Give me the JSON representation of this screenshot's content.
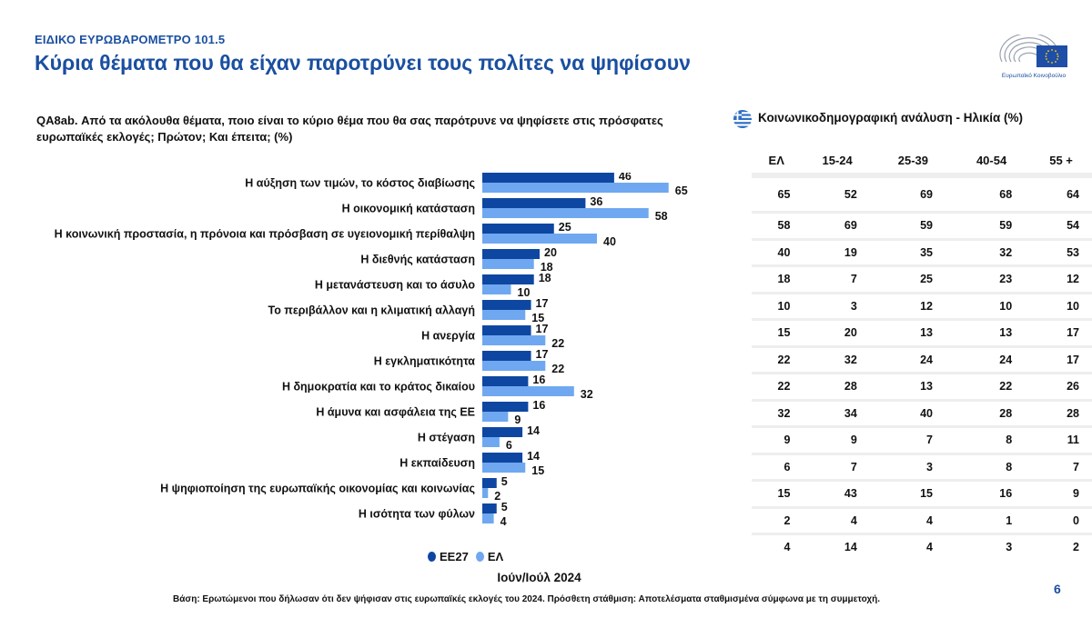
{
  "header": {
    "supertitle": "ΕΙΔΙΚΟ ΕΥΡΩΒΑΡΟΜΕΤΡΟ 101.5",
    "title": "Κύρια θέματα που θα είχαν παροτρύνει τους πολίτες να ψηφίσουν",
    "logo_text": "Ευρωπαϊκό Κοινοβούλιο"
  },
  "question": "QA8ab. Από τα ακόλουθα θέματα, ποιο είναι το κύριο θέμα που θα σας παρότρυνε να ψηφίσετε στις πρόσφατες ευρωπαϊκές εκλογές; Πρώτον; Και έπειτα; (%)",
  "colors": {
    "eu27": "#0e47a1",
    "el": "#6fa8f0",
    "brand": "#1a4fa0"
  },
  "chart_data": {
    "type": "bar",
    "orientation": "horizontal",
    "title": "Κύρια θέματα που θα είχαν παροτρύνει τους πολίτες να ψηφίσουν",
    "xlabel": "",
    "ylabel": "",
    "xlim": [
      0,
      70
    ],
    "grid": false,
    "legend_position": "bottom",
    "categories": [
      "Η αύξηση των τιμών, το κόστος διαβίωσης",
      "Η οικονομική κατάσταση",
      "Η κοινωνική προστασία, η πρόνοια και πρόσβαση σε υγειονομική περίθαλψη",
      "Η διεθνής κατάσταση",
      "Η μετανάστευση και το άσυλο",
      "Το περιβάλλον και η κλιματική αλλαγή",
      "Η ανεργία",
      "Η εγκληματικότητα",
      "Η δημοκρατία και το κράτος δικαίου",
      "Η άμυνα και ασφάλεια της ΕΕ",
      "Η στέγαση",
      "Η εκπαίδευση",
      "Η ψηφιοποίηση της ευρωπαϊκής οικονομίας και κοινωνίας",
      "Η ισότητα των φύλων"
    ],
    "series": [
      {
        "name": "ΕΕ27",
        "values": [
          46,
          36,
          25,
          20,
          18,
          17,
          17,
          17,
          16,
          16,
          14,
          14,
          5,
          5
        ]
      },
      {
        "name": "ΕΛ",
        "values": [
          65,
          58,
          40,
          18,
          10,
          15,
          22,
          22,
          32,
          9,
          6,
          15,
          2,
          4
        ]
      }
    ]
  },
  "legend": {
    "eu27": "ΕΕ27",
    "el": "ΕΛ"
  },
  "period": "Ιούν/Ιούλ 2024",
  "age_table": {
    "title": "Κοινωνικοδημογραφική ανάλυση - Ηλικία (%)",
    "headers": [
      "ΕΛ",
      "15-24",
      "25-39",
      "40-54",
      "55 +"
    ],
    "rows": [
      [
        65,
        52,
        69,
        68,
        64
      ],
      [
        58,
        69,
        59,
        59,
        54
      ],
      [
        40,
        19,
        35,
        32,
        53
      ],
      [
        18,
        7,
        25,
        23,
        12
      ],
      [
        10,
        3,
        12,
        10,
        10
      ],
      [
        15,
        20,
        13,
        13,
        17
      ],
      [
        22,
        32,
        24,
        24,
        17
      ],
      [
        22,
        28,
        13,
        22,
        26
      ],
      [
        32,
        34,
        40,
        28,
        28
      ],
      [
        9,
        9,
        7,
        8,
        11
      ],
      [
        6,
        7,
        3,
        8,
        7
      ],
      [
        15,
        43,
        15,
        16,
        9
      ],
      [
        2,
        4,
        4,
        1,
        0
      ],
      [
        4,
        14,
        4,
        3,
        2
      ]
    ]
  },
  "footer": {
    "base_note": "Βάση: Ερωτώμενοι που δήλωσαν ότι δεν ψήφισαν στις ευρωπαϊκές εκλογές του 2024. Πρόσθετη στάθμιση: Αποτελέσματα σταθμισμένα σύμφωνα με τη συμμετοχή.",
    "page_number": "6"
  }
}
